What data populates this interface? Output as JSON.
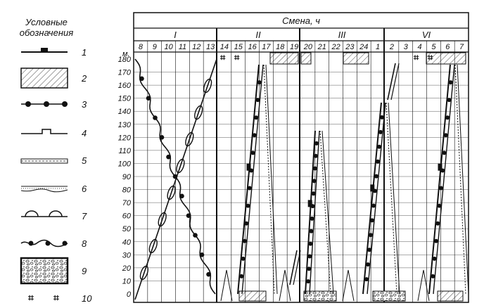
{
  "legend": {
    "title_line1": "Условные",
    "title_line2": "обозначения",
    "items": [
      {
        "number": "1",
        "icon": "line-with-filled-block-icon"
      },
      {
        "number": "2",
        "icon": "hatched-rectangle-icon"
      },
      {
        "number": "3",
        "icon": "line-with-dots-icon"
      },
      {
        "number": "4",
        "icon": "line-with-open-step-icon"
      },
      {
        "number": "5",
        "icon": "double-dashed-line-icon"
      },
      {
        "number": "6",
        "icon": "dotted-band-icon"
      },
      {
        "number": "7",
        "icon": "line-with-arcs-icon"
      },
      {
        "number": "8",
        "icon": "wavy-line-with-dots-icon"
      },
      {
        "number": "9",
        "icon": "rubble-rectangle-icon"
      },
      {
        "number": "10",
        "icon": "hash-pair-icon",
        "symbols": [
          "⌗",
          "⌗"
        ]
      }
    ]
  },
  "diagram": {
    "header_title": "Смена, ч",
    "y_unit": "м.",
    "y_ticks": [
      "180",
      "170",
      "160",
      "150",
      "140",
      "130",
      "120",
      "110",
      "100",
      "90",
      "80",
      "70",
      "60",
      "50",
      "40",
      "30",
      "20",
      "10",
      "0"
    ],
    "shifts": [
      {
        "label": "I",
        "hours": [
          "8",
          "9",
          "10",
          "11",
          "12",
          "13"
        ]
      },
      {
        "label": "II",
        "hours": [
          "14",
          "15",
          "16",
          "17",
          "18",
          "19"
        ]
      },
      {
        "label": "III",
        "hours": [
          "20",
          "21",
          "22",
          "23",
          "24",
          "1"
        ]
      },
      {
        "label": "VI",
        "hours": [
          "2",
          "3",
          "4",
          "5",
          "6",
          "7"
        ]
      }
    ],
    "hash_marks": [
      "⌗",
      "⌗",
      "⌗",
      "⌗"
    ]
  }
}
